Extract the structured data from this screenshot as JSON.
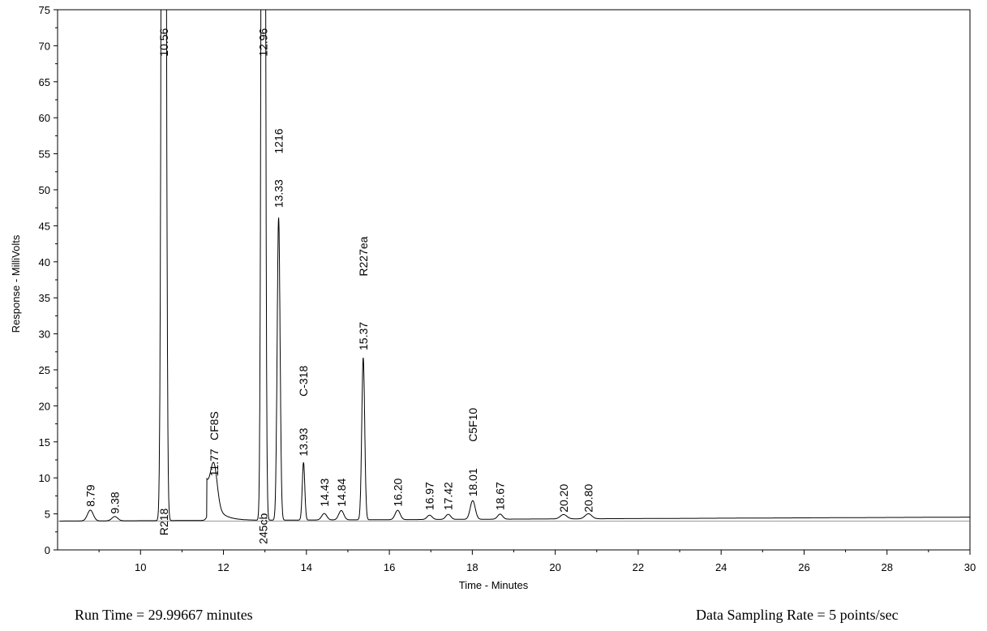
{
  "chart_data": {
    "type": "line",
    "xlabel": "Time - Minutes",
    "ylabel": "Response - MilliVolts",
    "xlim": [
      8,
      30
    ],
    "ylim": [
      0,
      75
    ],
    "x_ticks": [
      10,
      12,
      14,
      16,
      18,
      20,
      22,
      24,
      26,
      28,
      30
    ],
    "y_ticks": [
      0,
      5,
      10,
      15,
      20,
      25,
      30,
      35,
      40,
      45,
      50,
      55,
      60,
      65,
      70,
      75
    ],
    "grid": false,
    "baseline": 4.0,
    "peaks": [
      {
        "rt": 8.79,
        "height": 5.5,
        "width": 0.07
      },
      {
        "rt": 9.38,
        "height": 4.6,
        "width": 0.07
      },
      {
        "rt": 10.56,
        "height": 300,
        "width": 0.04
      },
      {
        "rt": 11.77,
        "height": 9.6,
        "width": 0.08
      },
      {
        "rt": 12.96,
        "height": 300,
        "width": 0.035
      },
      {
        "rt": 13.33,
        "height": 46,
        "width": 0.035
      },
      {
        "rt": 13.93,
        "height": 12,
        "width": 0.03
      },
      {
        "rt": 14.43,
        "height": 4.9,
        "width": 0.06
      },
      {
        "rt": 14.84,
        "height": 5.3,
        "width": 0.06
      },
      {
        "rt": 15.37,
        "height": 26.5,
        "width": 0.035
      },
      {
        "rt": 16.2,
        "height": 5.3,
        "width": 0.06
      },
      {
        "rt": 16.97,
        "height": 4.6,
        "width": 0.06
      },
      {
        "rt": 17.42,
        "height": 4.7,
        "width": 0.06
      },
      {
        "rt": 18.01,
        "height": 6.6,
        "width": 0.06
      },
      {
        "rt": 18.67,
        "height": 4.7,
        "width": 0.06
      },
      {
        "rt": 20.2,
        "height": 4.6,
        "width": 0.08
      },
      {
        "rt": 20.8,
        "height": 4.7,
        "width": 0.08
      }
    ],
    "labels": [
      {
        "text": "8.79",
        "x": 8.79,
        "y": 6.0
      },
      {
        "text": "9.38",
        "x": 9.38,
        "y": 5.0
      },
      {
        "text": "10.56",
        "x": 10.56,
        "y": 68.5
      },
      {
        "text": "11.77",
        "x": 11.77,
        "y": 10.2
      },
      {
        "text": "12.96",
        "x": 12.96,
        "y": 68.5
      },
      {
        "text": "13.33",
        "x": 13.33,
        "y": 47.5
      },
      {
        "text": "13.93",
        "x": 13.93,
        "y": 13.0
      },
      {
        "text": "14.43",
        "x": 14.43,
        "y": 6.0
      },
      {
        "text": "14.84",
        "x": 14.84,
        "y": 6.0
      },
      {
        "text": "15.37",
        "x": 15.37,
        "y": 27.7
      },
      {
        "text": "16.20",
        "x": 16.2,
        "y": 6.0
      },
      {
        "text": "16.97",
        "x": 16.97,
        "y": 5.5
      },
      {
        "text": "17.42",
        "x": 17.42,
        "y": 5.5
      },
      {
        "text": "18.01",
        "x": 18.01,
        "y": 7.4
      },
      {
        "text": "18.67",
        "x": 18.67,
        "y": 5.5
      },
      {
        "text": "20.20",
        "x": 20.2,
        "y": 5.2
      },
      {
        "text": "20.80",
        "x": 20.8,
        "y": 5.2
      },
      {
        "text": "CF8S",
        "x": 11.77,
        "y": 15.2
      },
      {
        "text": "1216",
        "x": 13.33,
        "y": 55.0
      },
      {
        "text": "C-318",
        "x": 13.93,
        "y": 21.3
      },
      {
        "text": "R227ea",
        "x": 15.37,
        "y": 38.0
      },
      {
        "text": "C5F10",
        "x": 18.01,
        "y": 15.0
      },
      {
        "text": "R218",
        "x": 10.56,
        "y": 2.0
      },
      {
        "text": "245cb",
        "x": 12.96,
        "y": 0.8
      }
    ]
  },
  "footer": {
    "run_time": "Run Time = 29.99667 minutes",
    "sampling_rate": "Data Sampling Rate = 5 points/sec"
  }
}
